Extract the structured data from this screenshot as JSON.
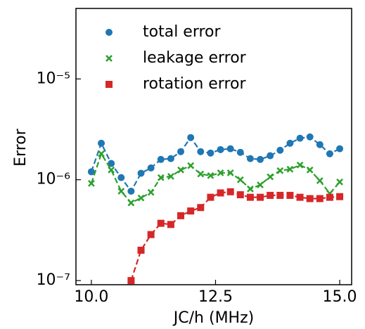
{
  "chart_data": {
    "type": "scatter",
    "ylabel": "Error",
    "xlabel": "JC/h (MHz)",
    "x": [
      10.0,
      10.2,
      10.4,
      10.6,
      10.8,
      11.0,
      11.2,
      11.4,
      11.6,
      11.8,
      12.0,
      12.2,
      12.4,
      12.6,
      12.8,
      13.0,
      13.2,
      13.4,
      13.6,
      13.8,
      14.0,
      14.2,
      14.4,
      14.6,
      14.8,
      15.0
    ],
    "series": [
      {
        "name": "total error",
        "color": "#1f77b4",
        "marker": "circle",
        "values": [
          1.2e-06,
          2.3e-06,
          1.45e-06,
          1.05e-06,
          7.7e-07,
          1.16e-06,
          1.31e-06,
          1.59e-06,
          1.62e-06,
          1.9e-06,
          2.62e-06,
          1.9e-06,
          1.84e-06,
          1.99e-06,
          2.03e-06,
          1.87e-06,
          1.62e-06,
          1.59e-06,
          1.73e-06,
          1.96e-06,
          2.3e-06,
          2.58e-06,
          2.66e-06,
          2.23e-06,
          1.81e-06,
          2.03e-06
        ]
      },
      {
        "name": "leakage error",
        "color": "#2ca02c",
        "marker": "cross",
        "values": [
          9.2e-07,
          1.81e-06,
          1.25e-06,
          7.7e-07,
          5.9e-07,
          6.6e-07,
          7.5e-07,
          1.05e-06,
          1.08e-06,
          1.25e-06,
          1.38e-06,
          1.14e-06,
          1.1e-06,
          1.17e-06,
          1.17e-06,
          1e-06,
          8.1e-07,
          8.9e-07,
          1.07e-06,
          1.23e-06,
          1.27e-06,
          1.4e-06,
          1.25e-06,
          9.8e-07,
          7.3e-07,
          9.5e-07
        ]
      },
      {
        "name": "rotation error",
        "color": "#d62728",
        "marker": "square",
        "values": [
          null,
          null,
          null,
          null,
          1e-07,
          2e-07,
          2.86e-07,
          3.7e-07,
          3.6e-07,
          4.4e-07,
          4.9e-07,
          5.3e-07,
          6.7e-07,
          7.4e-07,
          7.6e-07,
          7.1e-07,
          6.7e-07,
          6.7e-07,
          7e-07,
          7e-07,
          7e-07,
          6.7e-07,
          6.5e-07,
          6.5e-07,
          6.7e-07,
          6.8e-07
        ]
      }
    ],
    "xlim": [
      9.69,
      15.24
    ],
    "xticks": [
      {
        "value": 10,
        "label": "10.0"
      },
      12.5,
      {
        "value": 15,
        "label": "15.0"
      }
    ],
    "ylim": [
      9.1e-08,
      5e-05
    ],
    "log_y": true,
    "yticks": [
      {
        "value": 1e-07,
        "label": "10⁻⁷"
      },
      {
        "value": 1e-06,
        "label": "10⁻⁶"
      },
      {
        "value": 1e-05,
        "label": "10⁻⁵"
      }
    ],
    "legend": "upper left",
    "fit_lines": true
  }
}
